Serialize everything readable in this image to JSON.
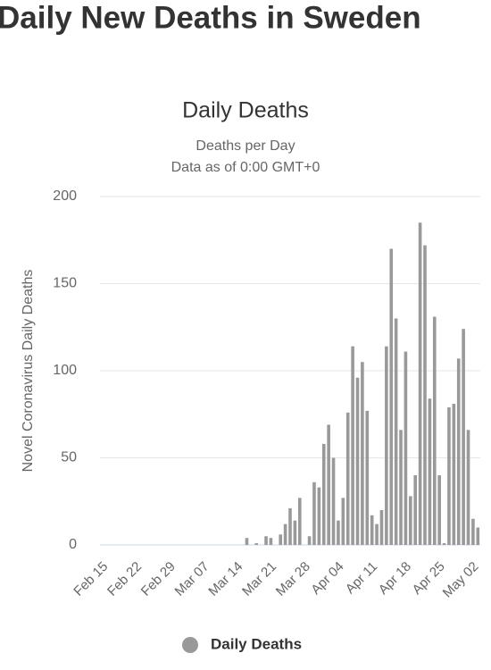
{
  "page_title": "Daily New Deaths in Sweden",
  "chart_data": {
    "type": "bar",
    "title": "Daily Deaths",
    "subtitle": [
      "Deaths per Day",
      "Data as of 0:00 GMT+0"
    ],
    "y_label": "Novel Coronavirus Daily Deaths",
    "categories": [
      "Feb 15",
      null,
      null,
      null,
      null,
      null,
      null,
      "Feb 22",
      null,
      null,
      null,
      null,
      null,
      null,
      "Feb 29",
      null,
      null,
      null,
      null,
      null,
      null,
      "Mar 07",
      null,
      null,
      null,
      null,
      null,
      null,
      "Mar 14",
      null,
      null,
      null,
      null,
      null,
      null,
      "Mar 21",
      null,
      null,
      null,
      null,
      null,
      null,
      "Mar 28",
      null,
      null,
      null,
      null,
      null,
      null,
      "Apr 04",
      null,
      null,
      null,
      null,
      null,
      null,
      "Apr 11",
      null,
      null,
      null,
      null,
      null,
      null,
      "Apr 18",
      null,
      null,
      null,
      null,
      null,
      null,
      "Apr 25",
      null,
      null,
      null,
      null,
      null,
      null,
      "May 02",
      null
    ],
    "series": [
      {
        "name": "Daily Deaths",
        "color": "#999999",
        "values": [
          0,
          0,
          0,
          0,
          0,
          0,
          0,
          0,
          0,
          0,
          0,
          0,
          0,
          0,
          0,
          0,
          0,
          0,
          0,
          0,
          0,
          0,
          0,
          0,
          0,
          0,
          0,
          0,
          0,
          0,
          4,
          0,
          1,
          0,
          5,
          4,
          0,
          6,
          12,
          21,
          14,
          27,
          0,
          5,
          36,
          33,
          58,
          69,
          50,
          14,
          27,
          76,
          114,
          96,
          105,
          77,
          17,
          12,
          20,
          114,
          170,
          130,
          66,
          111,
          28,
          40,
          185,
          172,
          84,
          131,
          40,
          1,
          79,
          81,
          107,
          124,
          66,
          15,
          10
        ]
      }
    ],
    "ylim": [
      0,
      200
    ],
    "yticks": [
      0,
      50,
      100,
      150,
      200
    ],
    "grid": true
  }
}
